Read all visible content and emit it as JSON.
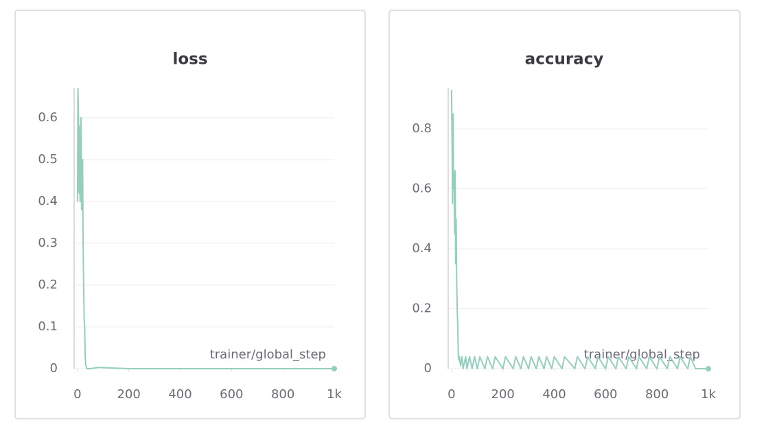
{
  "chart_data": [
    {
      "type": "line",
      "title": "loss",
      "xlabel": "trainer/global_step",
      "x": [
        0,
        2,
        4,
        6,
        8,
        10,
        12,
        14,
        16,
        18,
        20,
        22,
        24,
        26,
        28,
        30,
        32,
        34,
        36,
        40,
        50,
        80,
        200,
        400,
        600,
        800,
        1000
      ],
      "series": [
        {
          "name": "loss",
          "color": "#94cfbd",
          "values": [
            0.4,
            0.67,
            0.6,
            0.42,
            0.58,
            0.4,
            0.55,
            0.6,
            0.38,
            0.45,
            0.5,
            0.3,
            0.2,
            0.12,
            0.1,
            0.03,
            0.01,
            0.005,
            0,
            0,
            0,
            0.003,
            0,
            0,
            0,
            0,
            0
          ]
        }
      ],
      "xlim": [
        -13,
        1000
      ],
      "xticks": [
        0,
        200,
        400,
        600,
        800,
        {
          "value": 1000,
          "label": "1k"
        }
      ],
      "ylim": [
        0,
        0.672
      ],
      "yticks": [
        0,
        0.1,
        0.2,
        0.3,
        0.4,
        0.5,
        0.6
      ],
      "grid": true
    },
    {
      "type": "line",
      "title": "accuracy",
      "xlabel": "trainer/global_step",
      "x": [
        0,
        2,
        4,
        6,
        8,
        10,
        12,
        14,
        16,
        18,
        20,
        22,
        24,
        26,
        28,
        30,
        35,
        40,
        45,
        55,
        60,
        70,
        80,
        90,
        100,
        110,
        130,
        140,
        160,
        170,
        200,
        210,
        240,
        250,
        270,
        280,
        300,
        310,
        330,
        340,
        360,
        370,
        390,
        400,
        430,
        440,
        480,
        490,
        520,
        530,
        560,
        570,
        600,
        610,
        640,
        650,
        680,
        690,
        720,
        730,
        760,
        770,
        800,
        810,
        840,
        850,
        880,
        890,
        920,
        930,
        950,
        1000
      ],
      "series": [
        {
          "name": "accuracy",
          "color": "#94cfbd",
          "values": [
            0.93,
            0.75,
            0.55,
            0.85,
            0.6,
            0.65,
            0.45,
            0.66,
            0.35,
            0.5,
            0.3,
            0.2,
            0.15,
            0.05,
            0.03,
            0.04,
            0.01,
            0.04,
            0,
            0.04,
            0,
            0.04,
            0,
            0.04,
            0,
            0.04,
            0,
            0.04,
            0,
            0.04,
            0,
            0.04,
            0,
            0.04,
            0,
            0.04,
            0,
            0.04,
            0,
            0.04,
            0,
            0.04,
            0,
            0.04,
            0,
            0.04,
            0,
            0.04,
            0,
            0.04,
            0,
            0.04,
            0,
            0.04,
            0,
            0.04,
            0,
            0.04,
            0,
            0.04,
            0,
            0.04,
            0,
            0.04,
            0,
            0.04,
            0,
            0.04,
            0,
            0.04,
            0,
            0
          ]
        }
      ],
      "xlim": [
        -13,
        1000
      ],
      "xticks": [
        0,
        200,
        400,
        600,
        800,
        {
          "value": 1000,
          "label": "1k"
        }
      ],
      "ylim": [
        0,
        0.937
      ],
      "yticks": [
        0,
        0.2,
        0.4,
        0.6,
        0.8
      ],
      "grid": true
    }
  ]
}
